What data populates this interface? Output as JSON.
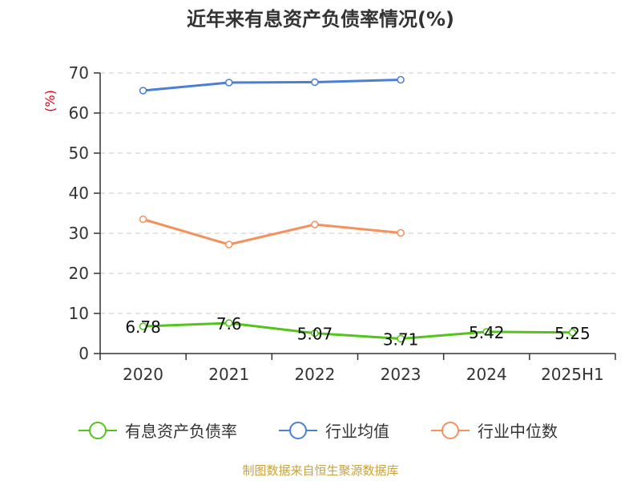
{
  "chart_data": {
    "type": "line",
    "title": "近年来有息资产负债率情况(%)",
    "ylabel": "(%)",
    "categories": [
      "2020",
      "2021",
      "2022",
      "2023",
      "2024",
      "2025H1"
    ],
    "ylim": [
      0,
      70
    ],
    "yticks": [
      "0",
      "10",
      "20",
      "30",
      "40",
      "50",
      "60",
      "70"
    ],
    "grid": true,
    "legend_position": "bottom",
    "series": [
      {
        "name": "有息资产负债率",
        "color": "#52c41a",
        "values": [
          6.78,
          7.6,
          5.07,
          3.71,
          5.42,
          5.25
        ],
        "labels": [
          "6.78",
          "7.6",
          "5.07",
          "3.71",
          "5.42",
          "5.25"
        ]
      },
      {
        "name": "行业均值",
        "color": "#4a7fd8",
        "values": [
          65.6,
          67.6,
          67.7,
          68.3,
          null,
          null
        ]
      },
      {
        "name": "行业中位数",
        "color": "#f4915c",
        "values": [
          33.5,
          27.2,
          32.2,
          30.1,
          null,
          null
        ]
      }
    ],
    "source": "制图数据来自恒生聚源数据库"
  }
}
